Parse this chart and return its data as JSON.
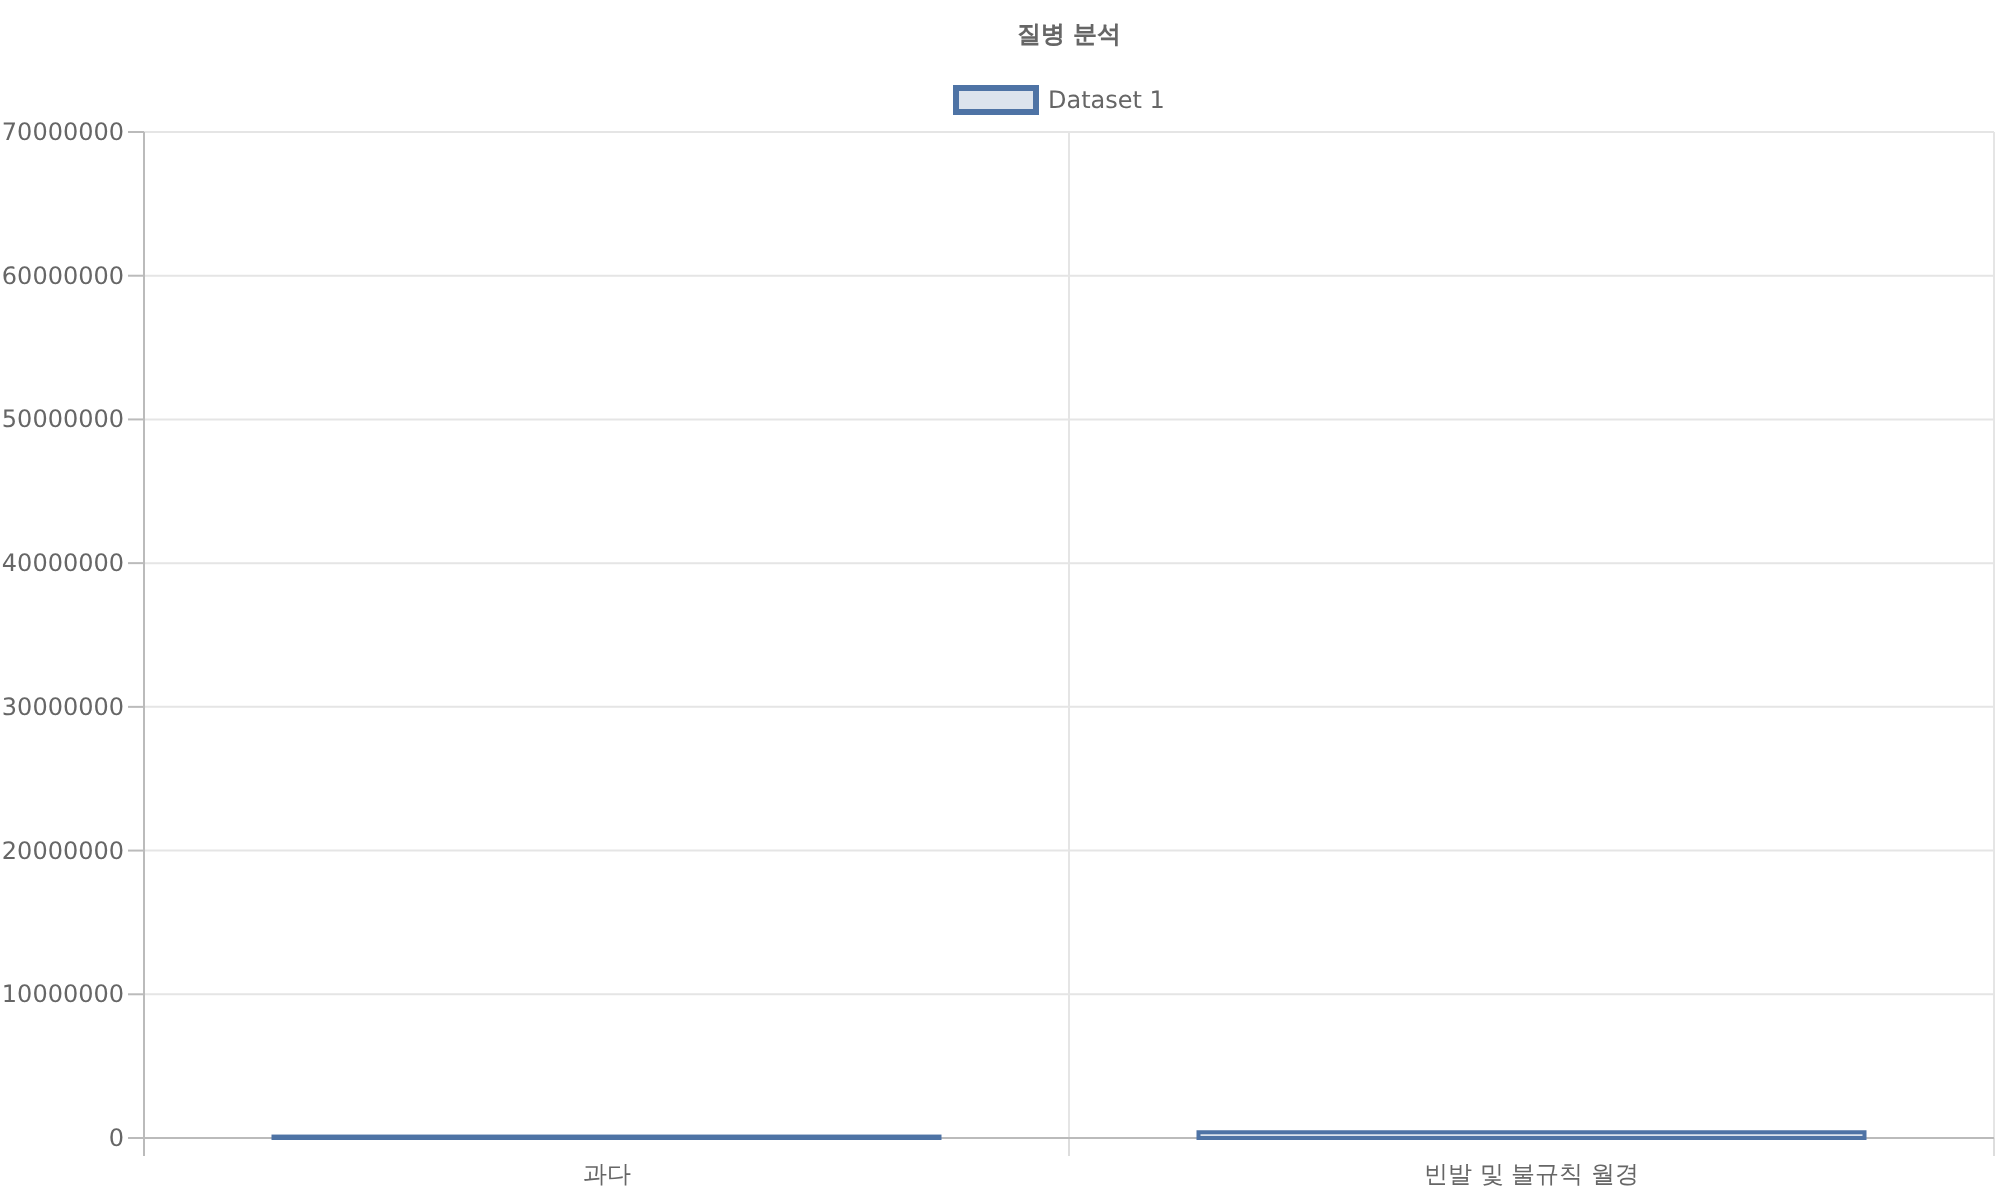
{
  "chart_data": {
    "type": "bar",
    "title": "질병 분석",
    "categories": [
      "과다",
      "빈발 및 불규칙 월경"
    ],
    "series": [
      {
        "name": "Dataset 1",
        "color": "#4e73a5",
        "values": [
          100000,
          400000
        ]
      }
    ],
    "ylim": [
      0,
      70000000
    ],
    "yticks": [
      0,
      10000000,
      20000000,
      30000000,
      40000000,
      50000000,
      60000000,
      70000000
    ],
    "grid": true,
    "legend": "top"
  }
}
